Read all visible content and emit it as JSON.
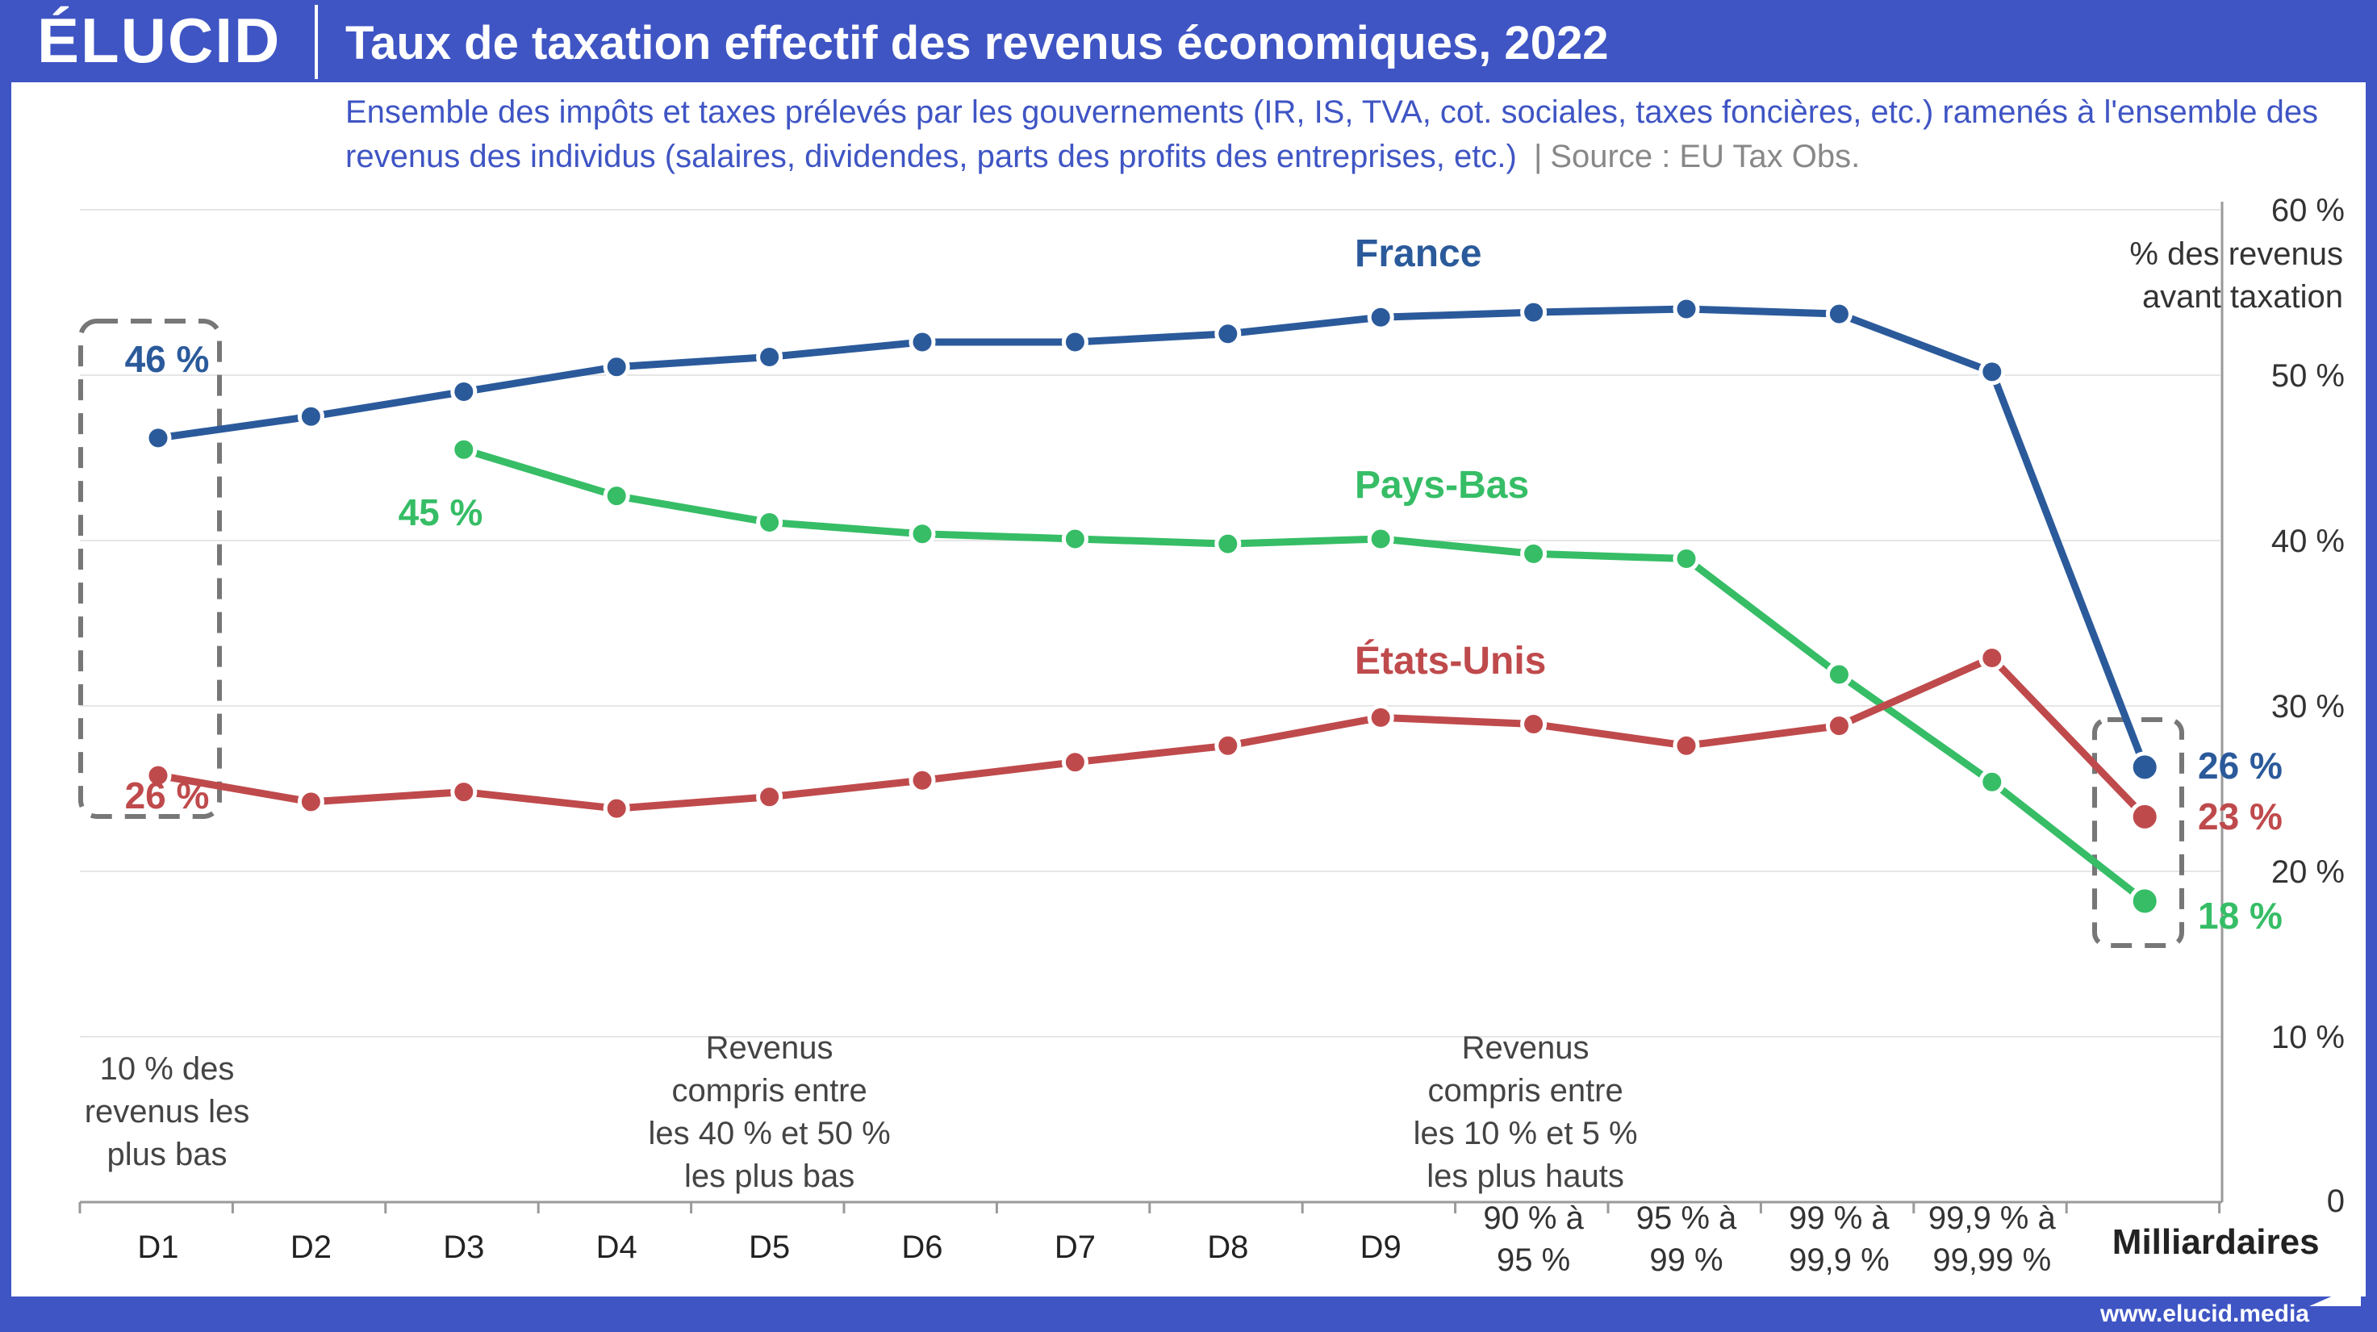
{
  "header": {
    "brand": "ÉLUCID",
    "title": "Taux de taxation effectif des revenus économiques, 2022"
  },
  "subtitle": "Ensemble des impôts et taxes prélevés par les gouvernements (IR, IS, TVA, cot. sociales, taxes foncières, etc.) ramenés à l'ensemble des revenus des individus (salaires, dividendes, parts des profits des entreprises, etc.)",
  "source_sep": "|",
  "source": "Source : EU Tax Obs.",
  "footer": {
    "url": "www.elucid.media"
  },
  "colors": {
    "brand": "#3f55c4",
    "france": "#2b5a9b",
    "paysbas": "#36bd66",
    "etatsunis": "#bf4a4c",
    "axis": "#9a9a9a",
    "grid": "#e6e6e6",
    "box": "#777777"
  },
  "chart_data": {
    "type": "line",
    "categories": [
      "D1",
      "D2",
      "D3",
      "D4",
      "D5",
      "D6",
      "D7",
      "D8",
      "D9",
      "90 % à 95 %",
      "95 % à 99 %",
      "99 % à 99,9 %",
      "99,9 % à 99,99 %",
      "Milliardaires"
    ],
    "ylim": [
      0,
      60
    ],
    "yticks": [
      "0",
      "10 %",
      "20 %",
      "30 %",
      "40 %",
      "50 %",
      "60 %"
    ],
    "ylabel": "% des revenus avant taxation",
    "grid": true,
    "series": [
      {
        "name": "France",
        "color": "#2b5a9b",
        "values": [
          46.2,
          47.5,
          49.0,
          50.5,
          51.1,
          52.0,
          52.0,
          52.5,
          53.5,
          53.8,
          54.0,
          53.7,
          50.2,
          26.3
        ]
      },
      {
        "name": "Pays-Bas",
        "color": "#36bd66",
        "values": [
          null,
          null,
          45.5,
          42.7,
          41.1,
          40.4,
          40.1,
          39.8,
          40.1,
          39.2,
          38.9,
          31.9,
          25.4,
          18.2
        ]
      },
      {
        "name": "États-Unis",
        "color": "#bf4a4c",
        "values": [
          25.8,
          24.2,
          24.8,
          23.8,
          24.5,
          25.5,
          26.6,
          27.6,
          29.3,
          28.9,
          27.6,
          28.8,
          32.9,
          23.3
        ]
      }
    ],
    "annotations": {
      "first": [
        "46 %",
        "26 %"
      ],
      "paysbas_first": "45 %",
      "last": [
        "26 %",
        "23 %",
        "18 %"
      ],
      "band_d1": "10 % des revenus les plus bas",
      "band_d5": "Revenus compris entre les 40 % et 50 % les plus bas",
      "band_p95": "Revenus compris entre les 10 % et 5 % les plus hauts"
    }
  }
}
